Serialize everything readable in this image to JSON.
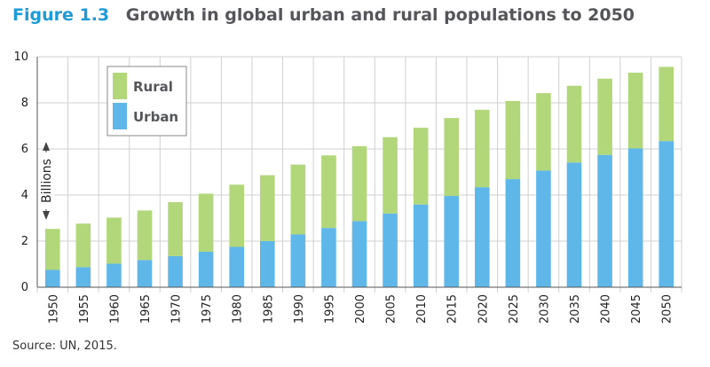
{
  "figure_label": "Figure 1.3",
  "source_note": "Source: UN, 2015.",
  "colors": {
    "urban": "#5eb6e9",
    "rural": "#b2d77a",
    "title_accent": "#1e9ad6",
    "title_text": "#55565a"
  },
  "chart_data": {
    "type": "bar",
    "stacked": true,
    "title": "Growth in global urban and rural populations to 2050",
    "xlabel": "",
    "ylabel": "Billions",
    "ylim": [
      0,
      10
    ],
    "yticks": [
      0,
      2,
      4,
      6,
      8,
      10
    ],
    "grid": true,
    "legend_position": "top-left",
    "categories": [
      "1950",
      "1955",
      "1960",
      "1965",
      "1970",
      "1975",
      "1980",
      "1985",
      "1990",
      "1995",
      "2000",
      "2005",
      "2010",
      "2015",
      "2020",
      "2025",
      "2030",
      "2035",
      "2040",
      "2045",
      "2050"
    ],
    "series": [
      {
        "name": "Urban",
        "values": [
          0.75,
          0.87,
          1.02,
          1.18,
          1.35,
          1.54,
          1.75,
          2.0,
          2.29,
          2.57,
          2.87,
          3.2,
          3.59,
          3.96,
          4.34,
          4.69,
          5.06,
          5.41,
          5.74,
          6.02,
          6.34
        ]
      },
      {
        "name": "Rural",
        "values": [
          1.78,
          1.89,
          2.0,
          2.15,
          2.34,
          2.52,
          2.7,
          2.86,
          3.03,
          3.15,
          3.25,
          3.31,
          3.33,
          3.38,
          3.36,
          3.39,
          3.36,
          3.33,
          3.31,
          3.29,
          3.22
        ]
      }
    ],
    "legend_order": [
      "Rural",
      "Urban"
    ]
  }
}
